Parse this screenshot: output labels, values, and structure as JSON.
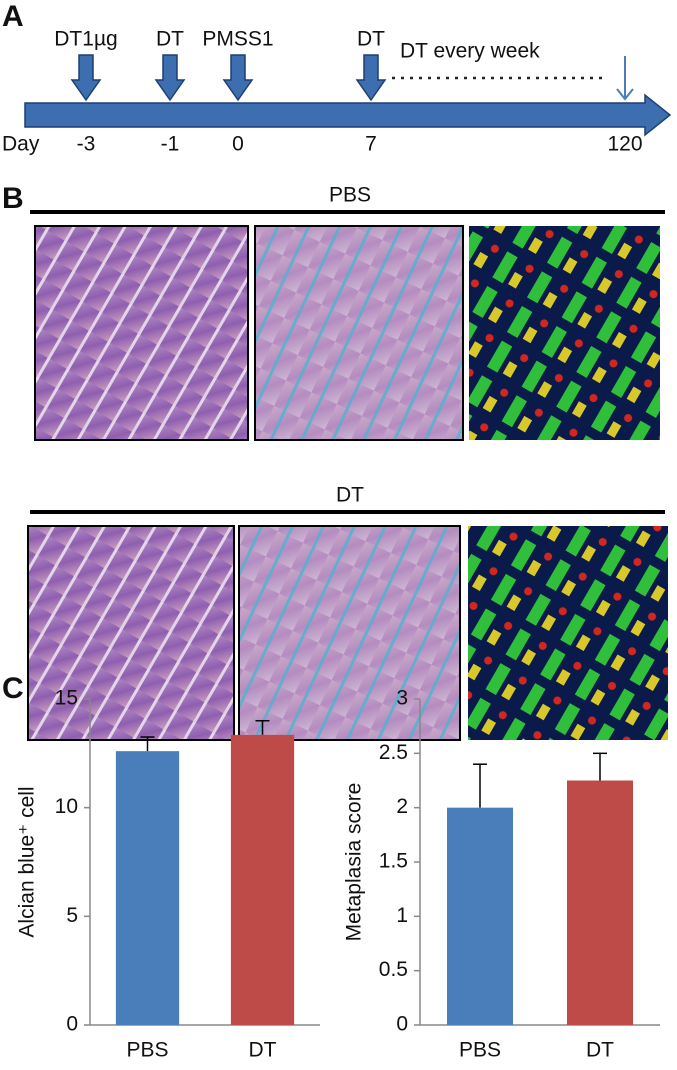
{
  "panel_a": {
    "label": "A",
    "events": [
      {
        "label": "DT1µg",
        "day": "-3"
      },
      {
        "label": "DT",
        "day": "-1"
      },
      {
        "label": "PMSS1",
        "day": "0"
      },
      {
        "label": "DT",
        "day": "7"
      }
    ],
    "day_label": "Day",
    "note": "DT every week",
    "end_day": "120"
  },
  "panel_b": {
    "label": "B",
    "groups": [
      "PBS",
      "DT"
    ]
  },
  "panel_c": {
    "label": "C"
  },
  "chart_data": [
    {
      "type": "bar",
      "y_label": "Alcian blue⁺ cell",
      "categories": [
        "PBS",
        "DT"
      ],
      "values": [
        12.6,
        13.35
      ],
      "errors": [
        0.65,
        0.65
      ],
      "colors": [
        "#4a7ebb",
        "#be4b48"
      ],
      "ylim": [
        0,
        15
      ],
      "yticks": [
        0,
        5,
        10,
        15
      ]
    },
    {
      "type": "bar",
      "y_label": "Metaplasia score",
      "categories": [
        "PBS",
        "DT"
      ],
      "values": [
        2.0,
        2.25
      ],
      "errors": [
        0.4,
        0.25
      ],
      "colors": [
        "#4a7ebb",
        "#be4b48"
      ],
      "ylim": [
        0,
        3
      ],
      "yticks": [
        0,
        0.5,
        1,
        1.5,
        2,
        2.5,
        3
      ]
    }
  ]
}
